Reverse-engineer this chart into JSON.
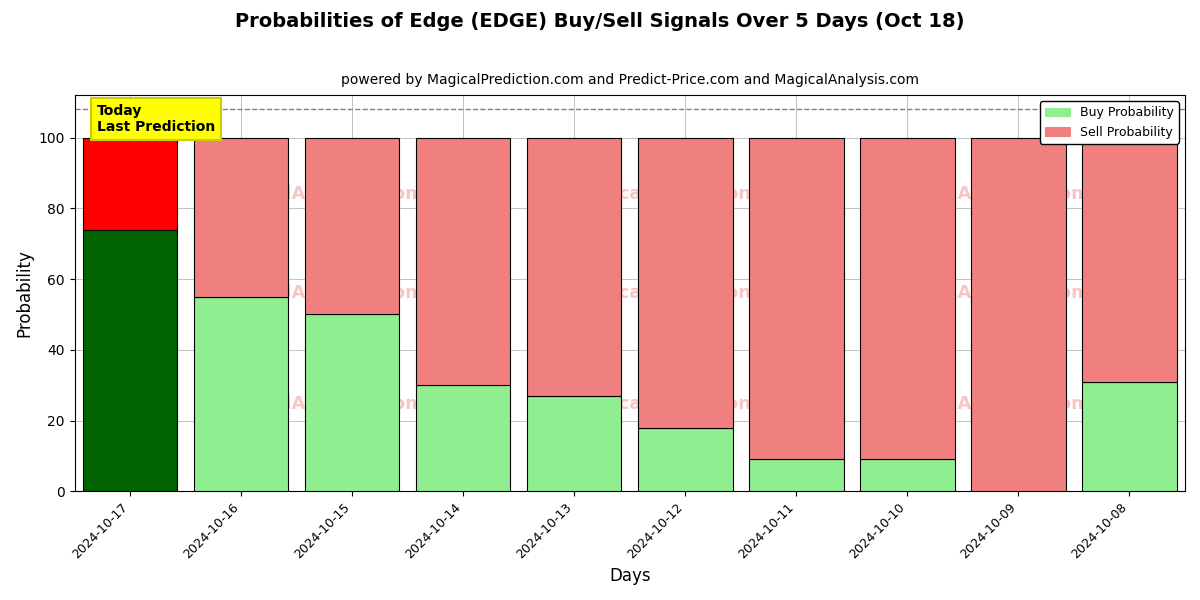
{
  "title": "Probabilities of Edge (EDGE) Buy/Sell Signals Over 5 Days (Oct 18)",
  "subtitle": "powered by MagicalPrediction.com and Predict-Price.com and MagicalAnalysis.com",
  "xlabel": "Days",
  "ylabel": "Probability",
  "dates": [
    "2024-10-17",
    "2024-10-16",
    "2024-10-15",
    "2024-10-14",
    "2024-10-13",
    "2024-10-12",
    "2024-10-11",
    "2024-10-10",
    "2024-10-09",
    "2024-10-08"
  ],
  "buy_values": [
    74,
    55,
    50,
    30,
    27,
    18,
    9,
    9,
    0,
    31
  ],
  "sell_values": [
    26,
    45,
    50,
    70,
    73,
    82,
    91,
    91,
    100,
    69
  ],
  "today_index": 0,
  "buy_color_today": "#006400",
  "sell_color_today": "#FF0000",
  "buy_color_normal": "#90EE90",
  "sell_color_normal": "#F08080",
  "bar_edge_color": "#000000",
  "ylim": [
    0,
    112
  ],
  "yticks": [
    0,
    20,
    40,
    60,
    80,
    100
  ],
  "dashed_line_y": 108,
  "watermark_color": "#F08080",
  "watermark_alpha": 0.45,
  "legend_buy_label": "Buy Probability",
  "legend_sell_label": "Sell Probability",
  "today_box_text": "Today\nLast Prediction",
  "today_box_color": "#FFFF00",
  "today_box_edge": "#CCCC00",
  "grid_color": "#aaaaaa",
  "background_color": "#ffffff",
  "title_fontsize": 14,
  "subtitle_fontsize": 10,
  "axis_label_fontsize": 12
}
